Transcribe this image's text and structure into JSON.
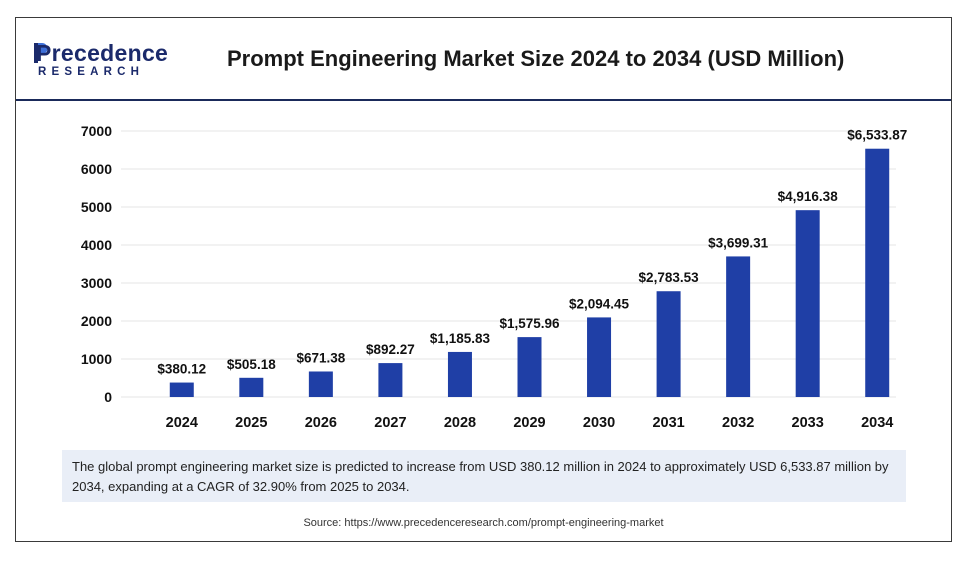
{
  "brand": {
    "name": "Precedence",
    "sub": "RESEARCH"
  },
  "title": "Prompt Engineering Market Size 2024 to 2034 (USD Million)",
  "colors": {
    "bar": "#1f3fa6",
    "header_rule": "#1a2a5a",
    "note_bg": "#e9eef7"
  },
  "chart_data": {
    "type": "bar",
    "categories": [
      "2024",
      "2025",
      "2026",
      "2027",
      "2028",
      "2029",
      "2030",
      "2031",
      "2032",
      "2033",
      "2034"
    ],
    "values": [
      380.12,
      505.18,
      671.38,
      892.27,
      1185.83,
      1575.96,
      2094.45,
      2783.53,
      3699.31,
      4916.38,
      6533.87
    ],
    "data_labels": [
      "$380.12",
      "$505.18",
      "$671.38",
      "$892.27",
      "$1,185.83",
      "$1,575.96",
      "$2,094.45",
      "$2,783.53",
      "$3,699.31",
      "$4,916.38",
      "$6,533.87"
    ],
    "yticks": [
      "0",
      "1000",
      "2000",
      "3000",
      "4000",
      "5000",
      "6000",
      "7000"
    ],
    "ylim": [
      0,
      7000
    ],
    "grid": true,
    "xlabel": "",
    "ylabel": ""
  },
  "note": "The global prompt engineering market size is predicted to increase from USD 380.12 million in 2024 to approximately USD 6,533.87 million by 2034, expanding at a CAGR of 32.90% from 2025 to 2034.",
  "source": "Source: https://www.precedenceresearch.com/prompt-engineering-market"
}
